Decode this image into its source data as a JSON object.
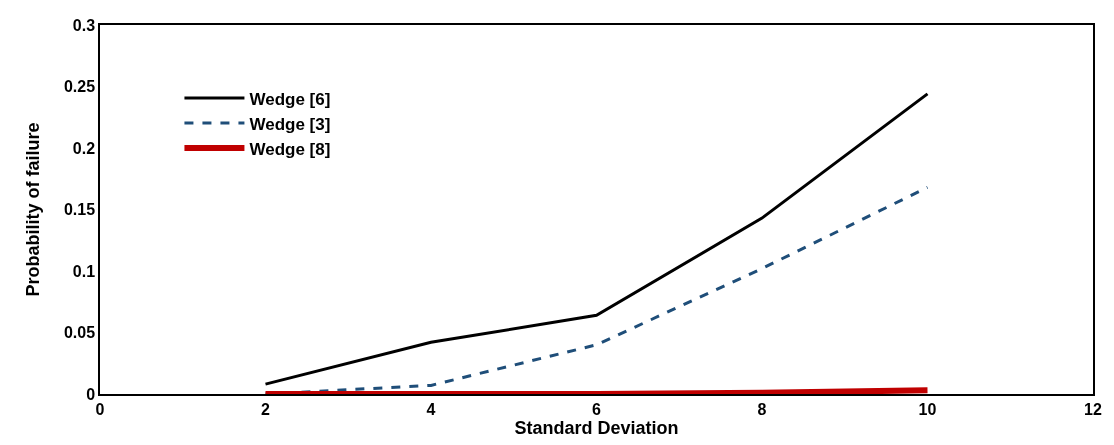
{
  "chart_data": {
    "type": "line",
    "xlabel": "Standard Deviation",
    "ylabel": "Probability of failure",
    "x": [
      2,
      4,
      6,
      8,
      10
    ],
    "series": [
      {
        "name": "Wedge [6]",
        "color": "#000000",
        "line_style": "solid",
        "values": [
          0.008,
          0.042,
          0.064,
          0.143,
          0.244
        ]
      },
      {
        "name": "Wedge [3]",
        "color": "#1f4e79",
        "line_style": "dashed",
        "values": [
          0.0,
          0.007,
          0.04,
          0.102,
          0.168
        ]
      },
      {
        "name": "Wedge [8]",
        "color": "#c00000",
        "line_style": "solid",
        "values": [
          0.0,
          0.0,
          0.0,
          0.001,
          0.003
        ]
      }
    ],
    "xlim": [
      0,
      12
    ],
    "xticks": [
      0,
      2,
      4,
      6,
      8,
      10,
      12
    ],
    "ylim": [
      0,
      0.3
    ],
    "yticks": [
      0,
      0.05,
      0.1,
      0.15,
      0.2,
      0.25,
      0.3
    ],
    "grid": false,
    "legend": "top left",
    "marker": "none"
  }
}
